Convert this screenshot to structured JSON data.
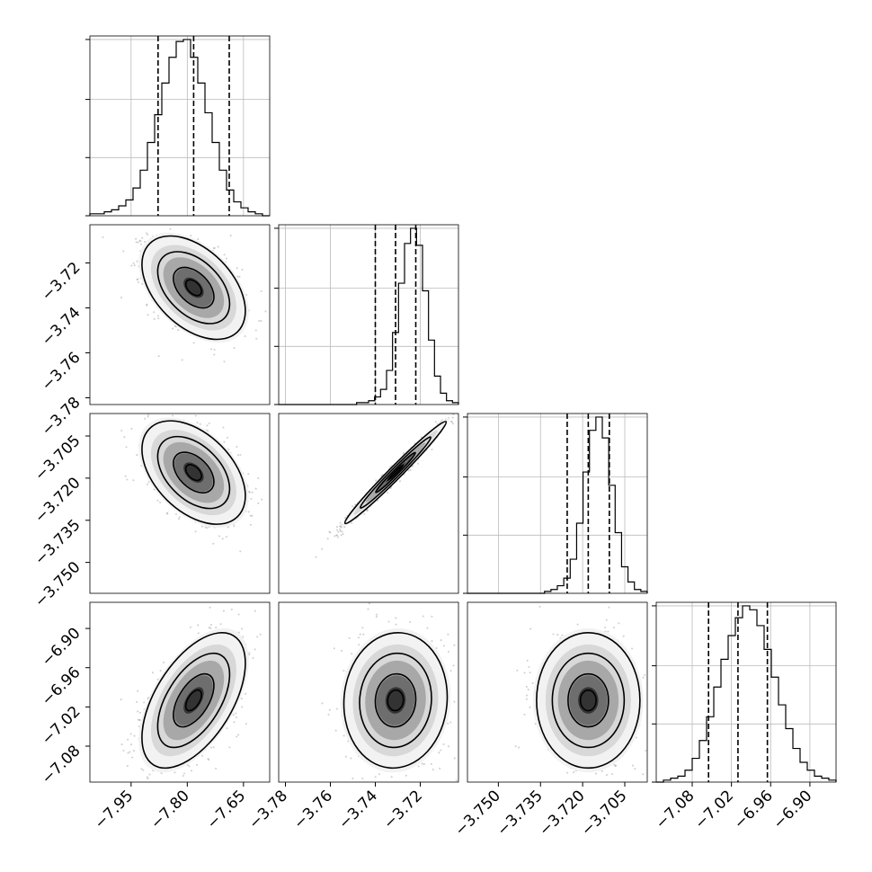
{
  "chart_data": {
    "type": "corner",
    "parameters": [
      {
        "ticks": [
          -7.95,
          -7.8,
          -7.65
        ],
        "tick_labels": [
          "−7.95",
          "−7.80",
          "−7.65"
        ],
        "range": [
          -8.06,
          -7.58
        ]
      },
      {
        "ticks": [
          -3.78,
          -3.76,
          -3.74,
          -3.72
        ],
        "tick_labels": [
          "−3.78",
          "−3.76",
          "−3.74",
          "−3.72"
        ],
        "range": [
          -3.783,
          -3.703
        ]
      },
      {
        "ticks": [
          -3.75,
          -3.735,
          -3.72,
          -3.705
        ],
        "tick_labels": [
          "−3.750",
          "−3.735",
          "−3.720",
          "−3.705"
        ],
        "range": [
          -3.761,
          -3.697
        ]
      },
      {
        "ticks": [
          -7.08,
          -7.02,
          -6.96,
          -6.9
        ],
        "tick_labels": [
          "−7.08",
          "−7.02",
          "−6.96",
          "−6.90"
        ],
        "range": [
          -7.135,
          -6.86
        ]
      }
    ],
    "quantiles": [
      [
        -7.878,
        -7.783,
        -7.688
      ],
      [
        -3.74,
        -3.731,
        -3.722
      ],
      [
        -3.7255,
        -3.718,
        -3.7105
      ],
      [
        -7.055,
        -7.01,
        -6.965
      ]
    ],
    "histograms": [
      {
        "counts": [
          1,
          1,
          2,
          3,
          5,
          8,
          14,
          23,
          37,
          51,
          67,
          80,
          88,
          89,
          80,
          67,
          52,
          37,
          23,
          13,
          7,
          4,
          2,
          1,
          0
        ]
      },
      {
        "counts": [
          0,
          0,
          0,
          0,
          0,
          0,
          0,
          0,
          0,
          0,
          0,
          0,
          0,
          1,
          1,
          2,
          4,
          8,
          18,
          38,
          64,
          85,
          93,
          84,
          60,
          34,
          15,
          6,
          2,
          1
        ]
      },
      {
        "counts": [
          0,
          0,
          0,
          0,
          0,
          0,
          0,
          0,
          0,
          0,
          0,
          0,
          1,
          2,
          4,
          8,
          18,
          37,
          64,
          86,
          93,
          82,
          57,
          32,
          14,
          6,
          2,
          1
        ]
      },
      {
        "counts": [
          0,
          1,
          2,
          3,
          6,
          12,
          21,
          33,
          48,
          62,
          74,
          83,
          89,
          87,
          79,
          67,
          53,
          39,
          27,
          17,
          10,
          6,
          3,
          2,
          1
        ]
      }
    ],
    "samples_2d": [
      {
        "x": 1,
        "y": 0,
        "mean": [
          -7.783,
          -3.731
        ],
        "sd": [
          0.06,
          0.01
        ],
        "rho": -0.45
      },
      {
        "x": 2,
        "y": 0,
        "mean": [
          -7.783,
          -3.718
        ],
        "sd": [
          0.06,
          0.008
        ],
        "rho": -0.45
      },
      {
        "x": 2,
        "y": 1,
        "mean": [
          -3.731,
          -3.718
        ],
        "sd": [
          0.0098,
          0.0079
        ],
        "rho": 0.985
      },
      {
        "x": 3,
        "y": 0,
        "mean": [
          -7.783,
          -7.01
        ],
        "sd": [
          0.06,
          0.045
        ],
        "rho": 0.55
      },
      {
        "x": 3,
        "y": 1,
        "mean": [
          -3.731,
          -7.01
        ],
        "sd": [
          0.01,
          0.045
        ],
        "rho": 0.05
      },
      {
        "x": 3,
        "y": 2,
        "mean": [
          -3.718,
          -7.01
        ],
        "sd": [
          0.008,
          0.045
        ],
        "rho": 0.0
      }
    ]
  }
}
